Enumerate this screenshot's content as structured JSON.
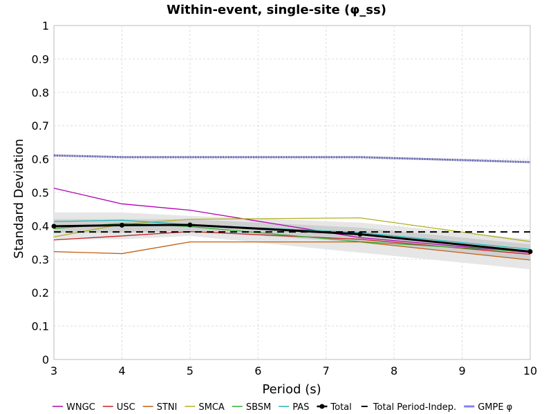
{
  "chart_data": {
    "type": "line",
    "title": "Within-event, single-site (φ_ss)",
    "xlabel": "Period (s)",
    "ylabel": "Standard Deviation",
    "xlim": [
      3,
      10
    ],
    "ylim": [
      0,
      1
    ],
    "xticks": [
      "3",
      "4",
      "5",
      "6",
      "7",
      "8",
      "9",
      "10"
    ],
    "yticks": [
      "0",
      "0.1",
      "0.2",
      "0.3",
      "0.4",
      "0.5",
      "0.6",
      "0.7",
      "0.8",
      "0.9",
      "1"
    ],
    "grid": true,
    "legend_position": "bottom",
    "bands": [
      {
        "upper": [
          {
            "x": 3,
            "y": 0.44
          },
          {
            "x": 4,
            "y": 0.44
          },
          {
            "x": 5,
            "y": 0.43
          },
          {
            "x": 7.5,
            "y": 0.41
          },
          {
            "x": 10,
            "y": 0.36
          }
        ],
        "lower": [
          {
            "x": 3,
            "y": 0.36
          },
          {
            "x": 4,
            "y": 0.36
          },
          {
            "x": 5,
            "y": 0.37
          },
          {
            "x": 7.5,
            "y": 0.32
          },
          {
            "x": 10,
            "y": 0.27
          }
        ],
        "color": "#e6e6e6"
      },
      {
        "upper": [
          {
            "x": 3,
            "y": 0.42
          },
          {
            "x": 4,
            "y": 0.42
          },
          {
            "x": 5,
            "y": 0.42
          },
          {
            "x": 7.5,
            "y": 0.395
          },
          {
            "x": 10,
            "y": 0.345
          }
        ],
        "lower": [
          {
            "x": 3,
            "y": 0.38
          },
          {
            "x": 4,
            "y": 0.38
          },
          {
            "x": 5,
            "y": 0.385
          },
          {
            "x": 7.5,
            "y": 0.35
          },
          {
            "x": 10,
            "y": 0.3
          }
        ],
        "color": "#cfcfcf"
      }
    ],
    "series": [
      {
        "name": "WNGC",
        "color": "#b000b0",
        "style": "solid",
        "width": 1.3,
        "markers": false,
        "points": [
          {
            "x": 3,
            "y": 0.513
          },
          {
            "x": 4,
            "y": 0.466
          },
          {
            "x": 5,
            "y": 0.447
          },
          {
            "x": 7.5,
            "y": 0.365
          },
          {
            "x": 10,
            "y": 0.32
          }
        ]
      },
      {
        "name": "USC",
        "color": "#cc1f1f",
        "style": "solid",
        "width": 1.3,
        "markers": false,
        "points": [
          {
            "x": 3,
            "y": 0.358
          },
          {
            "x": 4,
            "y": 0.37
          },
          {
            "x": 5,
            "y": 0.383
          },
          {
            "x": 7.5,
            "y": 0.36
          },
          {
            "x": 10,
            "y": 0.315
          }
        ]
      },
      {
        "name": "STNI",
        "color": "#c06010",
        "style": "solid",
        "width": 1.3,
        "markers": false,
        "points": [
          {
            "x": 3,
            "y": 0.323
          },
          {
            "x": 4,
            "y": 0.317
          },
          {
            "x": 5,
            "y": 0.352
          },
          {
            "x": 7.5,
            "y": 0.352
          },
          {
            "x": 10,
            "y": 0.298
          }
        ]
      },
      {
        "name": "SMCA",
        "color": "#b0b020",
        "style": "solid",
        "width": 1.3,
        "markers": false,
        "points": [
          {
            "x": 3,
            "y": 0.367
          },
          {
            "x": 4,
            "y": 0.405
          },
          {
            "x": 5,
            "y": 0.42
          },
          {
            "x": 7.5,
            "y": 0.424
          },
          {
            "x": 10,
            "y": 0.353
          }
        ]
      },
      {
        "name": "SBSM",
        "color": "#30b030",
        "style": "solid",
        "width": 1.3,
        "markers": false,
        "points": [
          {
            "x": 3,
            "y": 0.392
          },
          {
            "x": 4,
            "y": 0.408
          },
          {
            "x": 5,
            "y": 0.398
          },
          {
            "x": 7.5,
            "y": 0.353
          },
          {
            "x": 10,
            "y": 0.322
          }
        ]
      },
      {
        "name": "PAS",
        "color": "#20b8b8",
        "style": "solid",
        "width": 1.3,
        "markers": false,
        "points": [
          {
            "x": 3,
            "y": 0.413
          },
          {
            "x": 4,
            "y": 0.417
          },
          {
            "x": 5,
            "y": 0.404
          },
          {
            "x": 7.5,
            "y": 0.38
          },
          {
            "x": 10,
            "y": 0.33
          }
        ]
      },
      {
        "name": "Total",
        "color": "#000000",
        "style": "solid",
        "width": 3,
        "markers": true,
        "points": [
          {
            "x": 3,
            "y": 0.399
          },
          {
            "x": 4,
            "y": 0.402
          },
          {
            "x": 5,
            "y": 0.403
          },
          {
            "x": 7.5,
            "y": 0.375
          },
          {
            "x": 10,
            "y": 0.323
          }
        ]
      },
      {
        "name": "Total Period-Indep.",
        "color": "#000000",
        "style": "dashed",
        "width": 2,
        "markers": false,
        "points": [
          {
            "x": 3,
            "y": 0.382
          },
          {
            "x": 10,
            "y": 0.382
          }
        ]
      },
      {
        "name": "GMPE φ",
        "color": "#1a1aa0",
        "style": "dotted",
        "width": 3,
        "markers": false,
        "points": [
          {
            "x": 3,
            "y": 0.611
          },
          {
            "x": 4,
            "y": 0.606
          },
          {
            "x": 5,
            "y": 0.606
          },
          {
            "x": 7.5,
            "y": 0.606
          },
          {
            "x": 10,
            "y": 0.591
          }
        ]
      }
    ],
    "legend": [
      {
        "label": "WNGC",
        "color": "#b000b0",
        "style": "solid"
      },
      {
        "label": "USC",
        "color": "#cc1f1f",
        "style": "solid"
      },
      {
        "label": "STNI",
        "color": "#c06010",
        "style": "solid"
      },
      {
        "label": "SMCA",
        "color": "#b0b020",
        "style": "solid"
      },
      {
        "label": "SBSM",
        "color": "#30b030",
        "style": "solid"
      },
      {
        "label": "PAS",
        "color": "#20b8b8",
        "style": "solid"
      },
      {
        "label": "Total",
        "color": "#000000",
        "style": "marker"
      },
      {
        "label": "Total Period-Indep.",
        "color": "#000000",
        "style": "dashed"
      },
      {
        "label": "GMPE φ",
        "color": "#8080ff",
        "style": "thick"
      }
    ]
  }
}
